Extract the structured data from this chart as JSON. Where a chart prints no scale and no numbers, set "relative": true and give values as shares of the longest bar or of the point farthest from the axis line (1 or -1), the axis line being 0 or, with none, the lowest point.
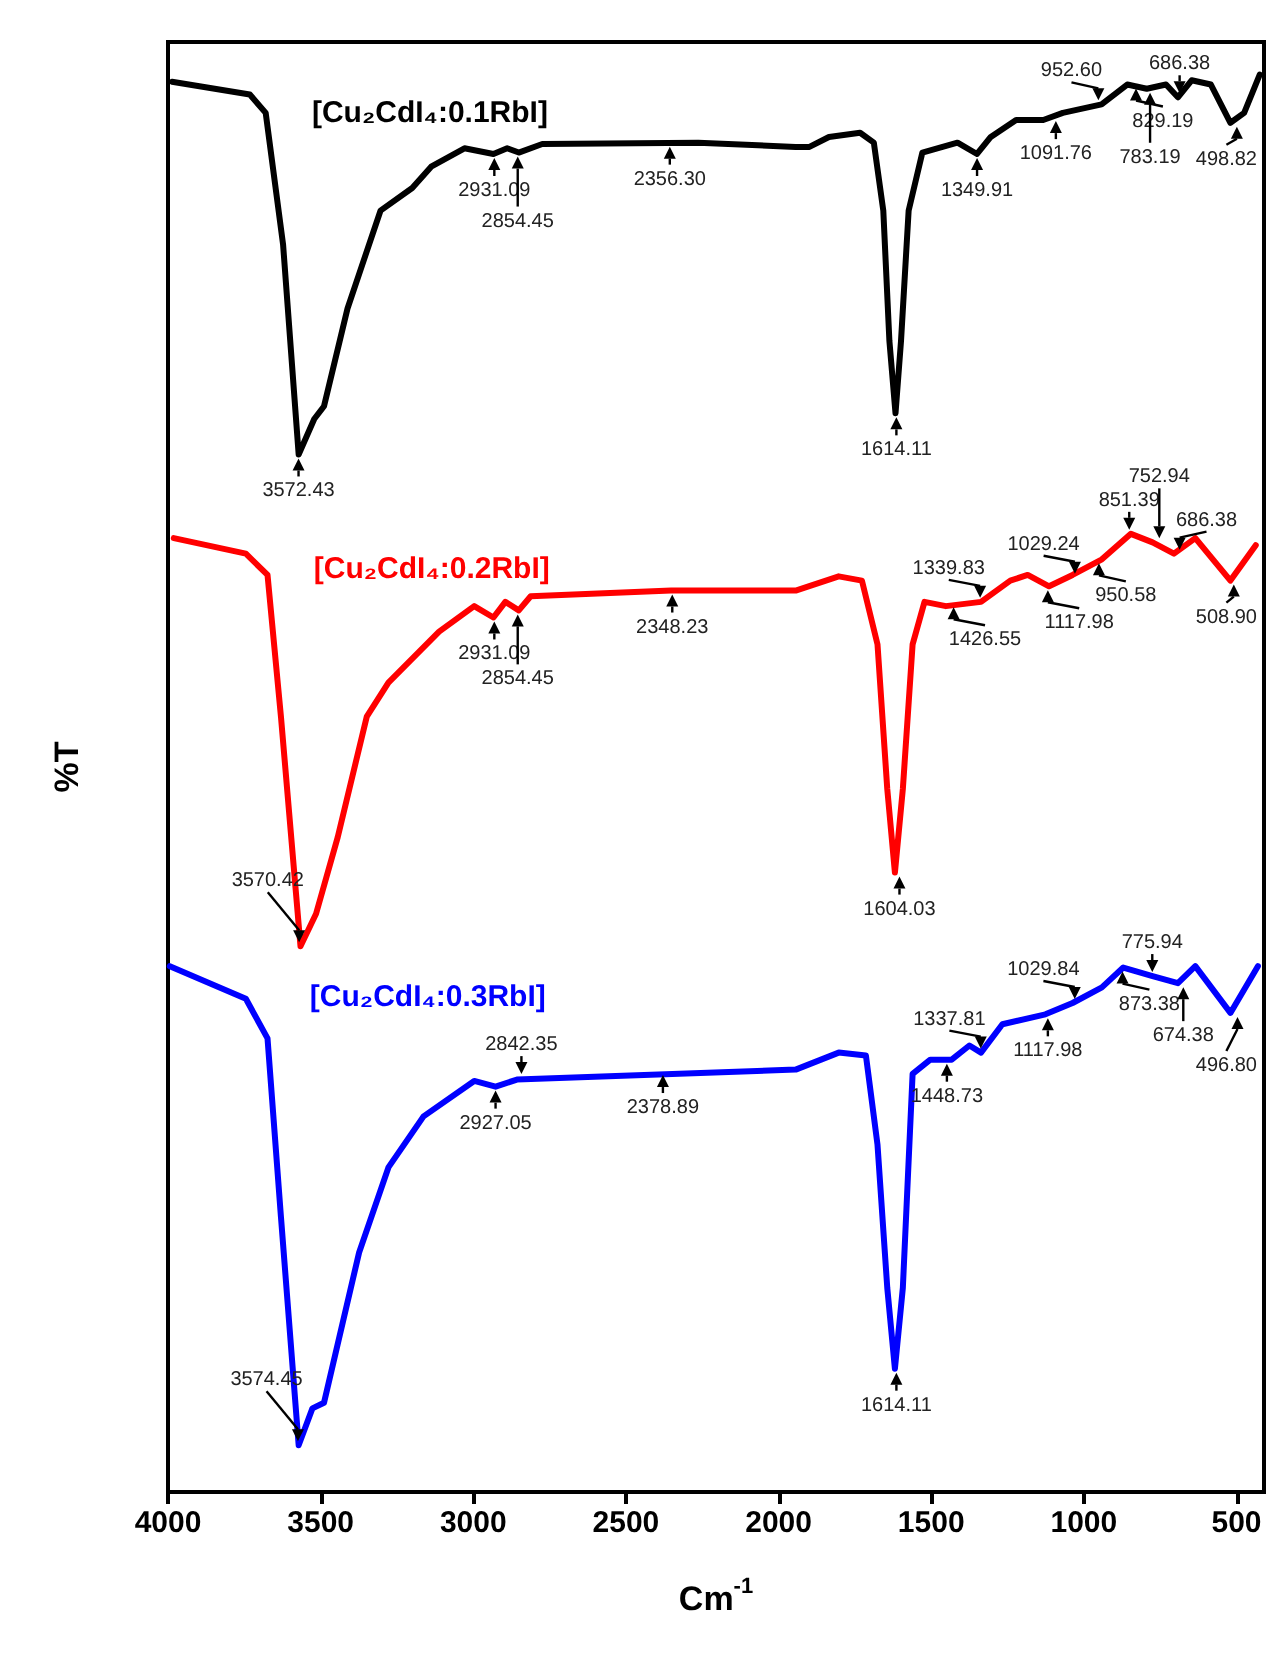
{
  "chart_data": {
    "type": "line",
    "relative": true,
    "xlabel": "Cm$^{-1}$",
    "ylabel": "%T",
    "xlim": [
      4000,
      410
    ],
    "xticks": [
      4000,
      3500,
      3000,
      2500,
      2000,
      1500,
      1000,
      500
    ],
    "tick_labels": "x",
    "series": [
      {
        "name": "[Cu₂CdI₄:0.1RbI]",
        "color": "#000000",
        "x": [
          3987,
          3732,
          3680,
          3623,
          3572,
          3521,
          3489,
          3412,
          3304,
          3200,
          3138,
          3029,
          2934,
          2889,
          2851,
          2774,
          2263,
          1944,
          1899,
          1835,
          1733,
          1688,
          1657,
          1637,
          1617,
          1599,
          1574,
          1529,
          1414,
          1350,
          1305,
          1222,
          1133,
          1069,
          942,
          858,
          794,
          731,
          692,
          647,
          584,
          520,
          475,
          424
        ],
        "values": [
          0.995,
          0.986,
          0.973,
          0.88,
          0.732,
          0.757,
          0.766,
          0.835,
          0.904,
          0.92,
          0.935,
          0.948,
          0.944,
          0.948,
          0.945,
          0.951,
          0.952,
          0.949,
          0.949,
          0.956,
          0.959,
          0.952,
          0.904,
          0.812,
          0.761,
          0.812,
          0.904,
          0.945,
          0.952,
          0.944,
          0.956,
          0.968,
          0.968,
          0.973,
          0.979,
          0.993,
          0.99,
          0.993,
          0.984,
          0.996,
          0.993,
          0.966,
          0.973,
          1.0
        ]
      },
      {
        "name": "[Cu₂CdI₄:0.2RbI]",
        "color": "#ff0000",
        "x": [
          3981,
          3745,
          3674,
          3630,
          3566,
          3515,
          3444,
          3349,
          3278,
          3112,
          2997,
          2934,
          2895,
          2851,
          2812,
          2352,
          1944,
          1803,
          1727,
          1676,
          1644,
          1619,
          1593,
          1561,
          1522,
          1452,
          1337,
          1241,
          1184,
          1114,
          1037,
          941,
          846,
          775,
          705,
          635,
          520,
          437
        ],
        "values": [
          0.673,
          0.662,
          0.647,
          0.547,
          0.385,
          0.408,
          0.462,
          0.547,
          0.571,
          0.607,
          0.625,
          0.617,
          0.628,
          0.622,
          0.632,
          0.636,
          0.636,
          0.646,
          0.643,
          0.598,
          0.496,
          0.437,
          0.496,
          0.598,
          0.628,
          0.625,
          0.628,
          0.643,
          0.647,
          0.639,
          0.647,
          0.658,
          0.676,
          0.67,
          0.662,
          0.673,
          0.643,
          0.668
        ]
      },
      {
        "name": "[Cu₂CdI₄:0.3RbI]",
        "color": "#0000ff",
        "x": [
          3994,
          3745,
          3674,
          3630,
          3572,
          3527,
          3489,
          3374,
          3278,
          3163,
          2997,
          2927,
          2857,
          1944,
          1803,
          1714,
          1676,
          1644,
          1619,
          1593,
          1561,
          1503,
          1433,
          1375,
          1337,
          1267,
          1126,
          1037,
          941,
          871,
          775,
          692,
          635,
          520,
          430
        ],
        "values": [
          0.371,
          0.348,
          0.32,
          0.194,
          0.033,
          0.059,
          0.063,
          0.169,
          0.229,
          0.265,
          0.29,
          0.286,
          0.291,
          0.298,
          0.31,
          0.308,
          0.245,
          0.144,
          0.087,
          0.144,
          0.295,
          0.305,
          0.305,
          0.315,
          0.31,
          0.33,
          0.337,
          0.345,
          0.356,
          0.37,
          0.364,
          0.359,
          0.371,
          0.338,
          0.371
        ]
      }
    ],
    "annotations": [
      {
        "text": "3572.43",
        "x": 3572.43,
        "y": 0.732
      },
      {
        "text": "2931.09",
        "x": 2931.09,
        "y": 0.944
      },
      {
        "text": "2854.45",
        "x": 2854.45,
        "y": 0.945
      },
      {
        "text": "2356.30",
        "x": 2356.3,
        "y": 0.952
      },
      {
        "text": "1614.11",
        "x": 1614.11,
        "y": 0.761
      },
      {
        "text": "1349.91",
        "x": 1349.91,
        "y": 0.944
      },
      {
        "text": "1091.76",
        "x": 1091.76,
        "y": 0.97
      },
      {
        "text": "952.60",
        "x": 952.6,
        "y": 0.979
      },
      {
        "text": "829.19",
        "x": 829.19,
        "y": 0.993
      },
      {
        "text": "783.19",
        "x": 783.19,
        "y": 0.99
      },
      {
        "text": "686.38",
        "x": 686.38,
        "y": 0.984
      },
      {
        "text": "498.82",
        "x": 498.82,
        "y": 0.966
      },
      {
        "text": "3570.42",
        "x": 3570.42,
        "y": 0.385
      },
      {
        "text": "2931.09",
        "x": 2931.09,
        "y": 0.617
      },
      {
        "text": "2854.45",
        "x": 2854.45,
        "y": 0.622
      },
      {
        "text": "2348.23",
        "x": 2348.23,
        "y": 0.636
      },
      {
        "text": "1604.03",
        "x": 1604.03,
        "y": 0.437
      },
      {
        "text": "1426.55",
        "x": 1426.55,
        "y": 0.627
      },
      {
        "text": "1339.83",
        "x": 1339.83,
        "y": 0.628
      },
      {
        "text": "1117.98",
        "x": 1117.98,
        "y": 0.639
      },
      {
        "text": "1029.24",
        "x": 1029.24,
        "y": 0.645
      },
      {
        "text": "950.58",
        "x": 950.58,
        "y": 0.658
      },
      {
        "text": "851.39",
        "x": 851.39,
        "y": 0.676
      },
      {
        "text": "752.94",
        "x": 752.94,
        "y": 0.67
      },
      {
        "text": "686.38",
        "x": 686.38,
        "y": 0.662
      },
      {
        "text": "508.90",
        "x": 508.9,
        "y": 0.643
      },
      {
        "text": "3574.45",
        "x": 3574.45,
        "y": 0.033
      },
      {
        "text": "2927.05",
        "x": 2927.05,
        "y": 0.286
      },
      {
        "text": "2842.35",
        "x": 2842.35,
        "y": 0.292
      },
      {
        "text": "2378.89",
        "x": 2378.89,
        "y": 0.297
      },
      {
        "text": "1614.11",
        "x": 1614.11,
        "y": 0.087
      },
      {
        "text": "1448.73",
        "x": 1448.73,
        "y": 0.305
      },
      {
        "text": "1337.81",
        "x": 1337.81,
        "y": 0.31
      },
      {
        "text": "1117.98",
        "x": 1117.98,
        "y": 0.337
      },
      {
        "text": "1029.84",
        "x": 1029.84,
        "y": 0.345
      },
      {
        "text": "873.38",
        "x": 873.38,
        "y": 0.37
      },
      {
        "text": "775.94",
        "x": 775.94,
        "y": 0.364
      },
      {
        "text": "674.38",
        "x": 674.38,
        "y": 0.359
      },
      {
        "text": "496.80",
        "x": 496.8,
        "y": 0.338
      }
    ]
  }
}
